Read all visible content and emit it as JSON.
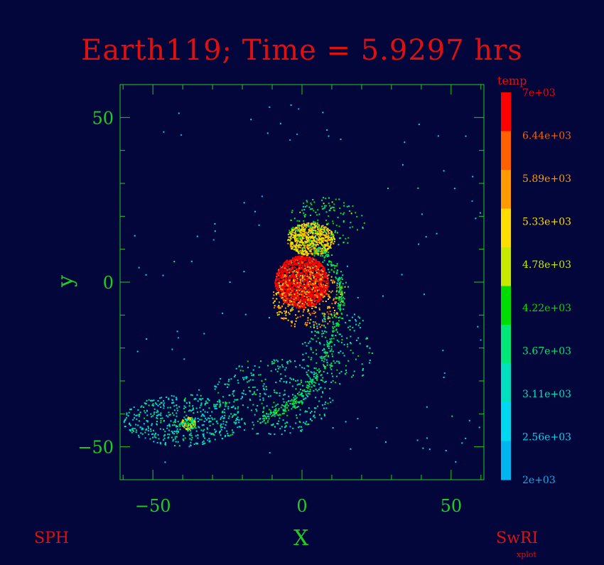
{
  "title": "Earth119; Time = 5.9297 hrs",
  "footer": {
    "left": "SPH",
    "right": "SwRI",
    "right_sub": "xplot"
  },
  "chart_data": {
    "type": "scatter",
    "title": "Earth119; Time = 5.9297 hrs",
    "xlabel": "X",
    "ylabel": "y",
    "xlim": [
      -61,
      61
    ],
    "ylim": [
      -60,
      60
    ],
    "xticks": [
      -50,
      0,
      50
    ],
    "yticks": [
      -50,
      0,
      50
    ],
    "xtick_labels": [
      "−50",
      "0",
      "50"
    ],
    "ytick_labels": [
      "−50",
      "0",
      "50"
    ],
    "grid": false,
    "colorbar": {
      "label": "temp",
      "range": [
        2000,
        7000
      ],
      "tick_labels": [
        "7e+03",
        "6.44e+03",
        "5.89e+03",
        "5.33e+03",
        "4.78e+03",
        "4.22e+03",
        "3.67e+03",
        "3.11e+03",
        "2.56e+03",
        "2e+03"
      ],
      "colors": [
        "#ff0000",
        "#ff6000",
        "#ff9a00",
        "#ffdd00",
        "#c8e800",
        "#00dd00",
        "#00e878",
        "#00e0c0",
        "#00d8f0",
        "#00b4f0"
      ]
    },
    "series": [
      {
        "kind": "cluster",
        "cx": 0,
        "cy": 0,
        "rx": 9,
        "ry": 8,
        "n": 1600,
        "temp": 6900,
        "spread": 1.0
      },
      {
        "kind": "cluster",
        "cx": 3,
        "cy": 13,
        "rx": 8,
        "ry": 5,
        "n": 700,
        "temp": 5200,
        "spread": 1.0
      },
      {
        "kind": "cluster",
        "cx": 2,
        "cy": -5,
        "rx": 10,
        "ry": 8,
        "n": 350,
        "temp": 5600,
        "spread": 1.2
      },
      {
        "kind": "cluster",
        "cx": 8,
        "cy": 18,
        "rx": 10,
        "ry": 6,
        "n": 140,
        "temp": 4000,
        "spread": 1.3
      },
      {
        "kind": "cluster",
        "cx": -38,
        "cy": -43,
        "rx": 2.5,
        "ry": 2,
        "n": 90,
        "temp": 4700,
        "spread": 1.0
      },
      {
        "kind": "cluster",
        "cx": -40,
        "cy": -42,
        "rx": 20,
        "ry": 8,
        "n": 480,
        "temp": 3300,
        "spread": 1.0
      },
      {
        "kind": "cluster",
        "cx": -10,
        "cy": -35,
        "rx": 20,
        "ry": 12,
        "n": 360,
        "temp": 3400,
        "spread": 1.0
      },
      {
        "kind": "cluster",
        "cx": 12,
        "cy": -20,
        "rx": 12,
        "ry": 12,
        "n": 170,
        "temp": 3600,
        "spread": 1.0
      },
      {
        "kind": "cluster",
        "cx": 0,
        "cy": 0,
        "rx": 60,
        "ry": 55,
        "n": 120,
        "temp": 3000,
        "spread": 1.0
      },
      {
        "kind": "stream",
        "points": [
          [
            5,
            10
          ],
          [
            10,
            6
          ],
          [
            13,
            0
          ],
          [
            13,
            -6
          ],
          [
            11,
            -14
          ],
          [
            8,
            -22
          ],
          [
            4,
            -30
          ],
          [
            -1,
            -36
          ],
          [
            -8,
            -39
          ],
          [
            -14,
            -42
          ]
        ],
        "n": 380,
        "temp": 3900,
        "width": 0.8
      }
    ]
  }
}
